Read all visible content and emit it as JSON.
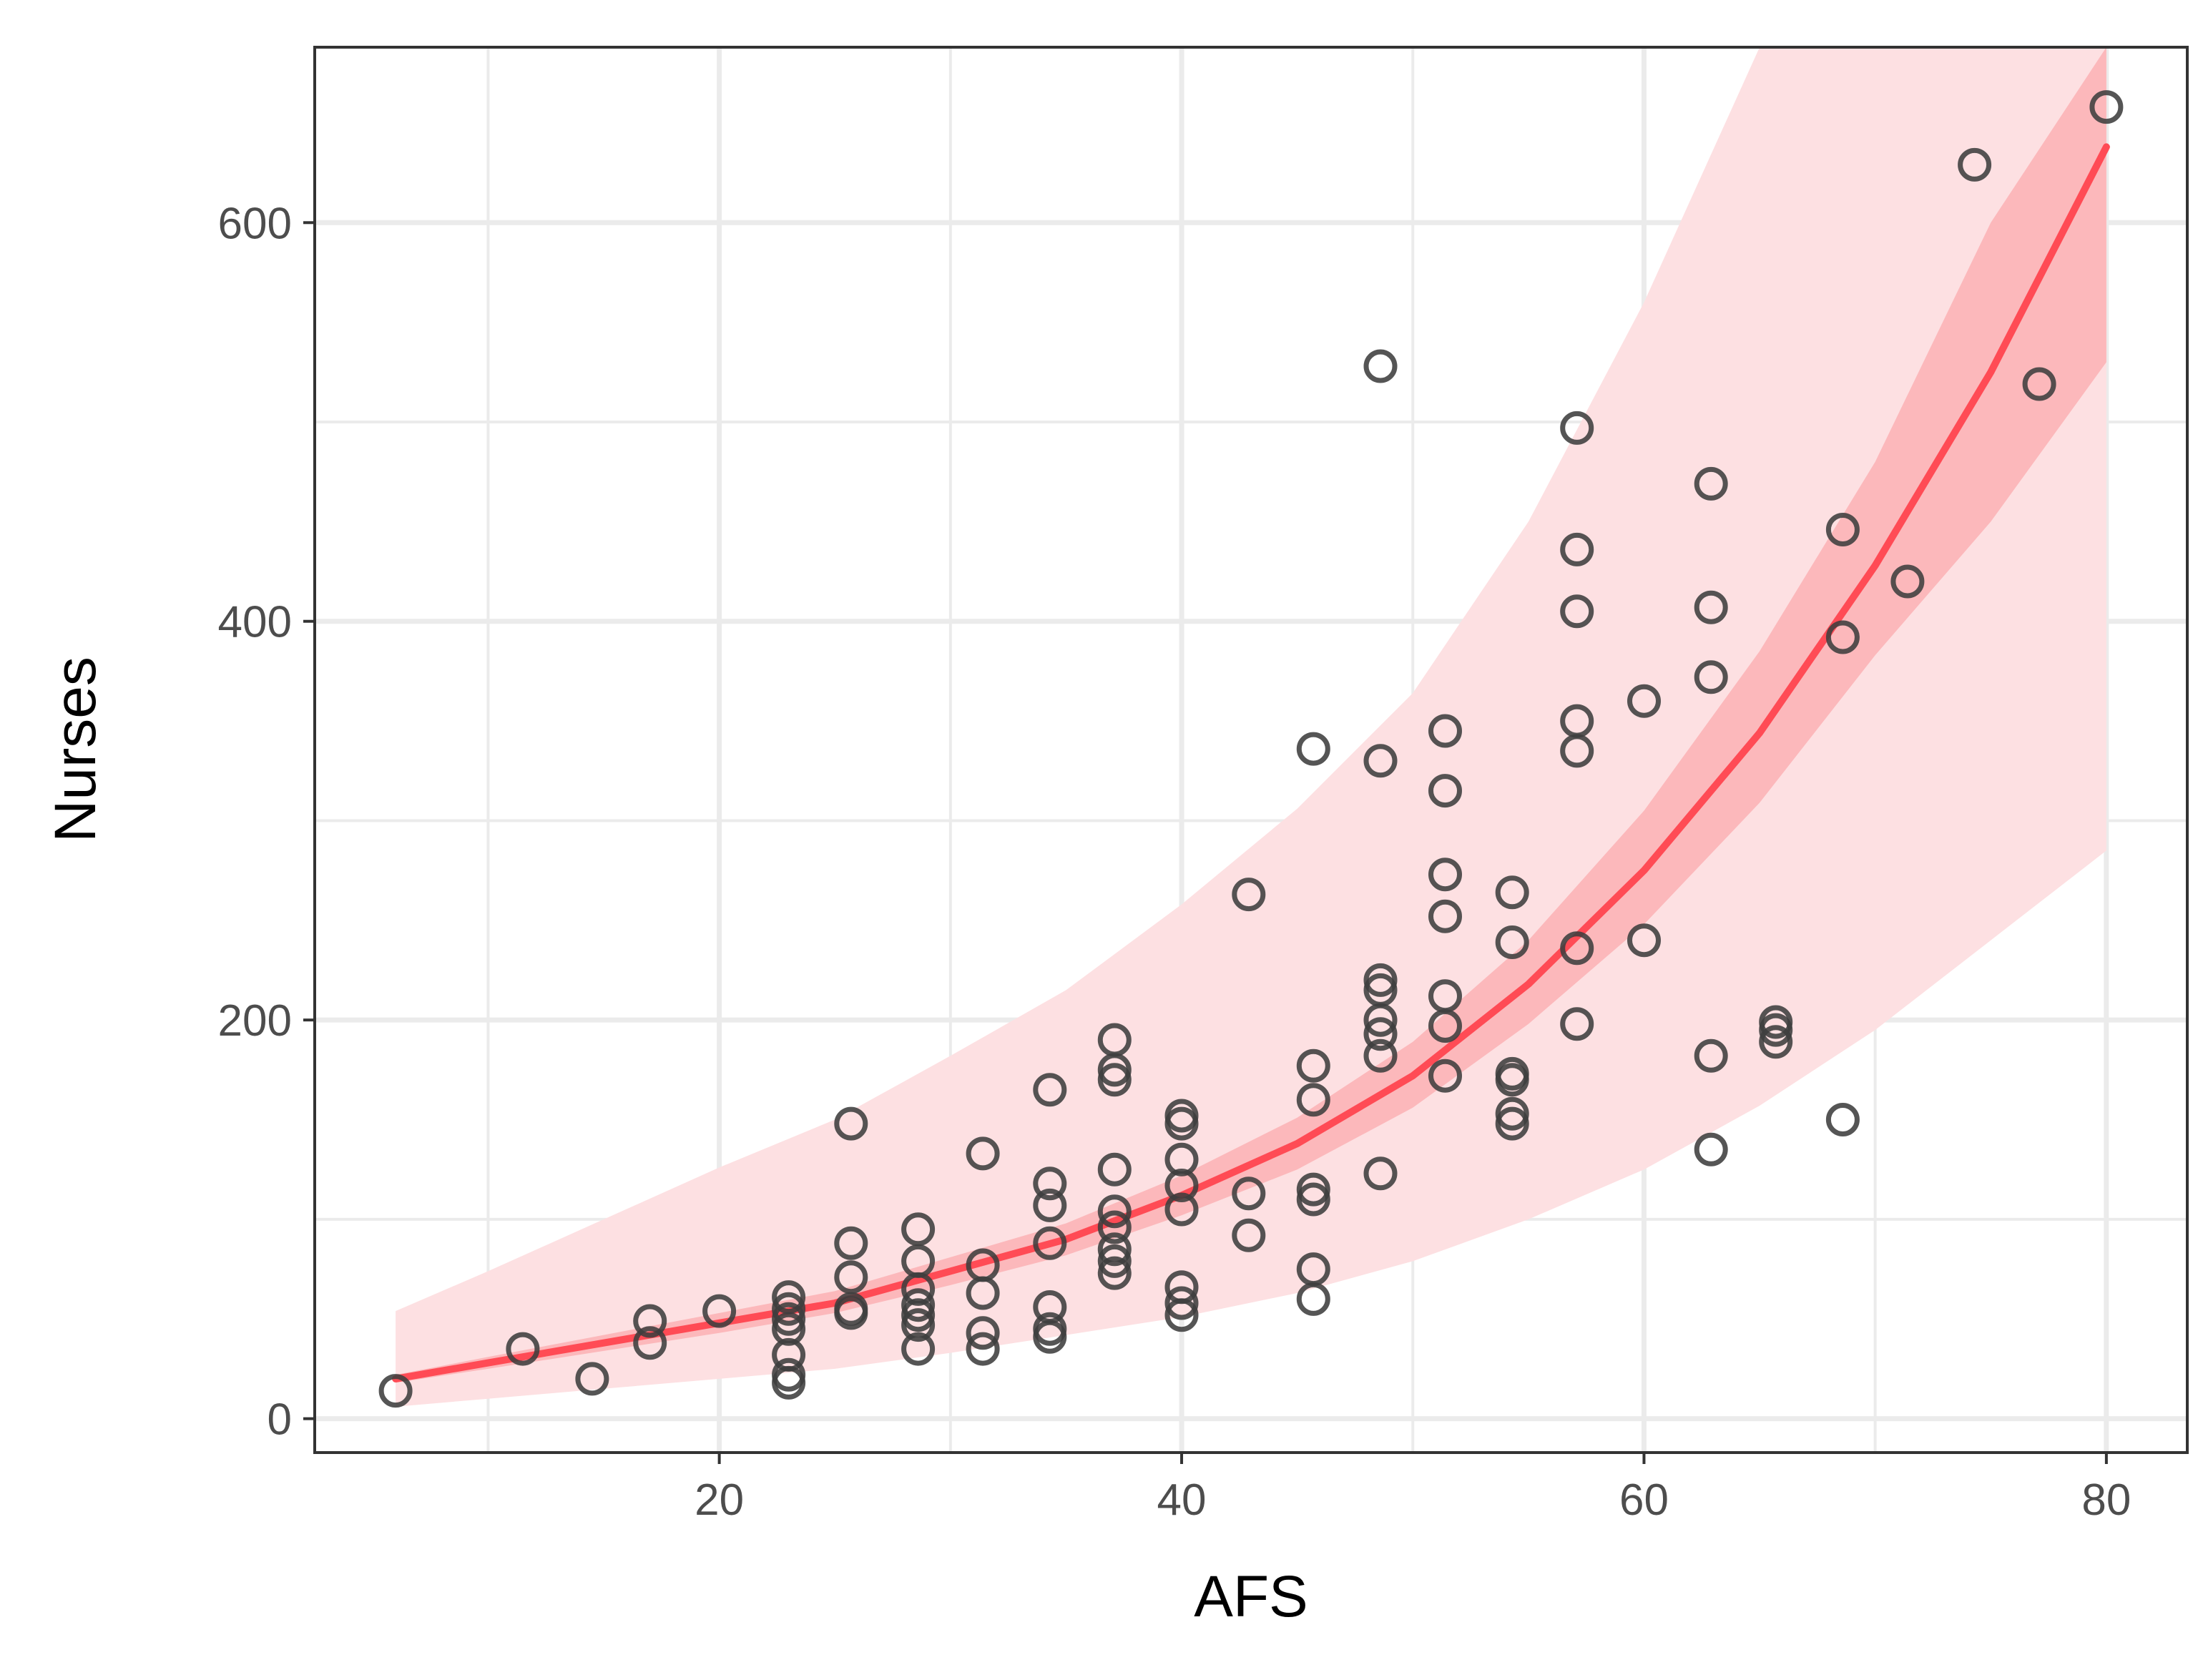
{
  "chart_data": {
    "type": "scatter",
    "title": "",
    "xlabel": "AFS",
    "ylabel": "Nurses",
    "xlim": [
      2.5,
      83.5
    ],
    "ylim": [
      -17,
      688
    ],
    "x_ticks": [
      20,
      40,
      60,
      80
    ],
    "y_ticks": [
      0,
      200,
      400,
      600
    ],
    "x_minor_ticks": [
      10,
      30,
      50,
      70
    ],
    "y_minor_ticks": [
      100,
      300,
      500
    ],
    "grid": true,
    "legend": "none",
    "colors": {
      "point": "#3d3d3d",
      "fit_line": "#ff4b55",
      "ci_band": "#fcb8bb",
      "pi_band": "#fde0e2",
      "grid": "#ebebeb",
      "panel_border": "#333333"
    },
    "fit": {
      "x": [
        6,
        10,
        15,
        20,
        25,
        30,
        35,
        40,
        45,
        50,
        55,
        60,
        65,
        70,
        75,
        80
      ],
      "y": [
        20,
        28,
        38,
        48,
        58,
        74,
        90,
        112,
        138,
        172,
        218,
        275,
        344,
        428,
        525,
        638
      ],
      "ci_low": [
        18,
        25,
        34,
        43,
        53,
        67,
        82,
        102,
        125,
        156,
        198,
        248,
        309,
        383,
        450,
        530
      ],
      "ci_high": [
        22,
        31,
        42,
        53,
        64,
        81,
        98,
        122,
        151,
        189,
        240,
        305,
        385,
        480,
        600,
        688
      ],
      "pi_low": [
        6,
        10,
        15,
        20,
        25,
        33,
        42,
        51,
        63,
        79,
        100,
        125,
        157,
        195,
        240,
        285
      ],
      "pi_high": [
        54,
        74,
        100,
        126,
        150,
        182,
        215,
        258,
        306,
        364,
        450,
        560,
        688,
        688,
        688,
        688
      ]
    },
    "points": [
      {
        "x": 6,
        "y": 14
      },
      {
        "x": 11.5,
        "y": 35
      },
      {
        "x": 14.5,
        "y": 20
      },
      {
        "x": 17,
        "y": 38
      },
      {
        "x": 17,
        "y": 49
      },
      {
        "x": 20,
        "y": 54
      },
      {
        "x": 23,
        "y": 18
      },
      {
        "x": 23,
        "y": 22
      },
      {
        "x": 23,
        "y": 32
      },
      {
        "x": 23,
        "y": 45
      },
      {
        "x": 23,
        "y": 50
      },
      {
        "x": 23,
        "y": 55
      },
      {
        "x": 23,
        "y": 61
      },
      {
        "x": 25.7,
        "y": 53
      },
      {
        "x": 25.7,
        "y": 55
      },
      {
        "x": 25.7,
        "y": 71
      },
      {
        "x": 25.7,
        "y": 88
      },
      {
        "x": 25.7,
        "y": 148
      },
      {
        "x": 28.6,
        "y": 35
      },
      {
        "x": 28.6,
        "y": 47
      },
      {
        "x": 28.6,
        "y": 52
      },
      {
        "x": 28.6,
        "y": 57
      },
      {
        "x": 28.6,
        "y": 65
      },
      {
        "x": 28.6,
        "y": 79
      },
      {
        "x": 28.6,
        "y": 95
      },
      {
        "x": 31.4,
        "y": 35
      },
      {
        "x": 31.4,
        "y": 43
      },
      {
        "x": 31.4,
        "y": 63
      },
      {
        "x": 31.4,
        "y": 77
      },
      {
        "x": 31.4,
        "y": 133
      },
      {
        "x": 34.3,
        "y": 41
      },
      {
        "x": 34.3,
        "y": 45
      },
      {
        "x": 34.3,
        "y": 56
      },
      {
        "x": 34.3,
        "y": 88
      },
      {
        "x": 34.3,
        "y": 107
      },
      {
        "x": 34.3,
        "y": 118
      },
      {
        "x": 34.3,
        "y": 165
      },
      {
        "x": 37.1,
        "y": 73
      },
      {
        "x": 37.1,
        "y": 79
      },
      {
        "x": 37.1,
        "y": 85
      },
      {
        "x": 37.1,
        "y": 96
      },
      {
        "x": 37.1,
        "y": 104
      },
      {
        "x": 37.1,
        "y": 125
      },
      {
        "x": 37.1,
        "y": 170
      },
      {
        "x": 37.1,
        "y": 175
      },
      {
        "x": 37.1,
        "y": 190
      },
      {
        "x": 40,
        "y": 52
      },
      {
        "x": 40,
        "y": 58
      },
      {
        "x": 40,
        "y": 66
      },
      {
        "x": 40,
        "y": 105
      },
      {
        "x": 40,
        "y": 117
      },
      {
        "x": 40,
        "y": 130
      },
      {
        "x": 40,
        "y": 148
      },
      {
        "x": 40,
        "y": 152
      },
      {
        "x": 42.9,
        "y": 92
      },
      {
        "x": 42.9,
        "y": 113
      },
      {
        "x": 42.9,
        "y": 263
      },
      {
        "x": 45.7,
        "y": 60
      },
      {
        "x": 45.7,
        "y": 75
      },
      {
        "x": 45.7,
        "y": 110
      },
      {
        "x": 45.7,
        "y": 115
      },
      {
        "x": 45.7,
        "y": 160
      },
      {
        "x": 45.7,
        "y": 177
      },
      {
        "x": 45.7,
        "y": 336
      },
      {
        "x": 48.6,
        "y": 123
      },
      {
        "x": 48.6,
        "y": 182
      },
      {
        "x": 48.6,
        "y": 193
      },
      {
        "x": 48.6,
        "y": 200
      },
      {
        "x": 48.6,
        "y": 215
      },
      {
        "x": 48.6,
        "y": 220
      },
      {
        "x": 48.6,
        "y": 330
      },
      {
        "x": 48.6,
        "y": 528
      },
      {
        "x": 51.4,
        "y": 172
      },
      {
        "x": 51.4,
        "y": 197
      },
      {
        "x": 51.4,
        "y": 212
      },
      {
        "x": 51.4,
        "y": 252
      },
      {
        "x": 51.4,
        "y": 273
      },
      {
        "x": 51.4,
        "y": 315
      },
      {
        "x": 51.4,
        "y": 345
      },
      {
        "x": 54.3,
        "y": 148
      },
      {
        "x": 54.3,
        "y": 153
      },
      {
        "x": 54.3,
        "y": 170
      },
      {
        "x": 54.3,
        "y": 173
      },
      {
        "x": 54.3,
        "y": 239
      },
      {
        "x": 54.3,
        "y": 264
      },
      {
        "x": 57.1,
        "y": 198
      },
      {
        "x": 57.1,
        "y": 236
      },
      {
        "x": 57.1,
        "y": 335
      },
      {
        "x": 57.1,
        "y": 350
      },
      {
        "x": 57.1,
        "y": 405
      },
      {
        "x": 57.1,
        "y": 436
      },
      {
        "x": 57.1,
        "y": 497
      },
      {
        "x": 60,
        "y": 240
      },
      {
        "x": 60,
        "y": 360
      },
      {
        "x": 62.9,
        "y": 135
      },
      {
        "x": 62.9,
        "y": 182
      },
      {
        "x": 62.9,
        "y": 372
      },
      {
        "x": 62.9,
        "y": 407
      },
      {
        "x": 62.9,
        "y": 469
      },
      {
        "x": 65.7,
        "y": 189
      },
      {
        "x": 65.7,
        "y": 195
      },
      {
        "x": 65.7,
        "y": 199
      },
      {
        "x": 68.6,
        "y": 150
      },
      {
        "x": 68.6,
        "y": 392
      },
      {
        "x": 68.6,
        "y": 446
      },
      {
        "x": 71.4,
        "y": 420
      },
      {
        "x": 74.3,
        "y": 629
      },
      {
        "x": 77.1,
        "y": 519
      },
      {
        "x": 80,
        "y": 658
      }
    ]
  }
}
